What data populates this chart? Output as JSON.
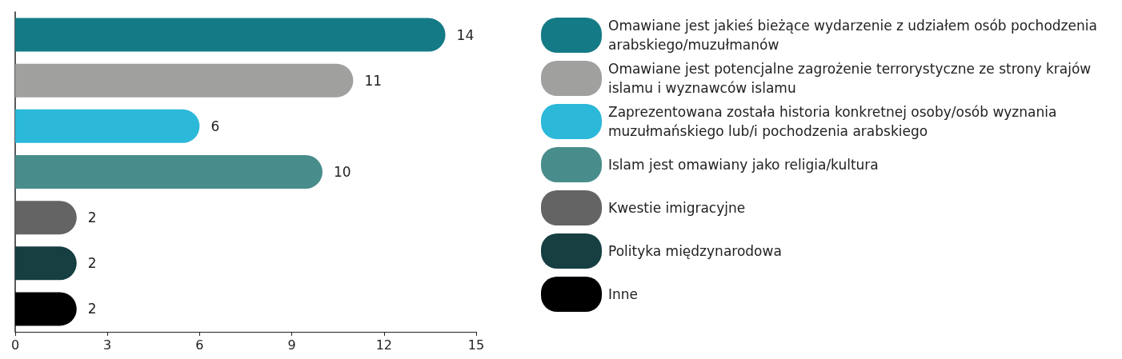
{
  "chart_data": {
    "type": "bar",
    "orientation": "horizontal",
    "stacked": true,
    "categories": [
      null,
      null,
      null,
      null,
      null,
      null,
      null
    ],
    "series": [
      {
        "name": "Omawiane jest jakieś bieżące wydarzenie z udziałem osób pochodzenia arabskiego/muzułmanów",
        "color": "#147b86",
        "values": [
          14,
          null,
          null,
          null,
          null,
          null,
          null
        ]
      },
      {
        "name": "Omawiane jest potencjalne zagrożenie terrorystyczne ze strony krajów islamu i wyznawców islamu",
        "color": "#a0a09f",
        "values": [
          null,
          11,
          null,
          null,
          null,
          null,
          null
        ]
      },
      {
        "name": "Zaprezentowana została historia konkretnej osoby/osób wyznania muzułmańskiego lub/i pochodzenia arabskiego",
        "color": "#2bb8d9",
        "values": [
          null,
          null,
          6,
          null,
          null,
          null,
          null
        ]
      },
      {
        "name": "Islam jest omawiany jako religia/kultura",
        "color": "#488d8c",
        "values": [
          null,
          null,
          null,
          10,
          null,
          null,
          null
        ]
      },
      {
        "name": "Kwestie imigracyjne",
        "color": "#646464",
        "values": [
          null,
          null,
          null,
          null,
          2,
          null,
          null
        ]
      },
      {
        "name": "Polityka międzynarodowa",
        "color": "#173f42",
        "values": [
          null,
          null,
          null,
          null,
          null,
          2,
          null
        ]
      },
      {
        "name": "Inne",
        "color": "#000000",
        "values": [
          null,
          null,
          null,
          null,
          null,
          null,
          2
        ]
      }
    ],
    "xlim": [
      0,
      15
    ],
    "xticks": [
      0,
      3,
      6,
      9,
      12,
      15
    ],
    "data_labels": true,
    "legend": "right",
    "grid": false
  }
}
